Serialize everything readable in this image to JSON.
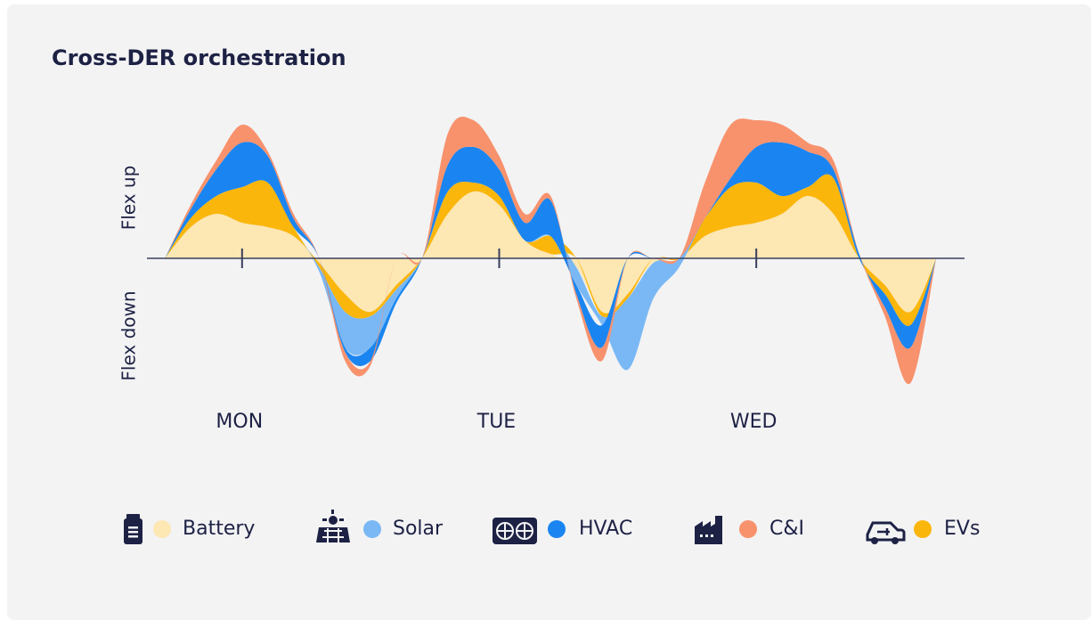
{
  "chart_data": {
    "type": "area",
    "title": "Cross-DER orchestration",
    "y_label_up": "Flex up",
    "y_label_down": "Flex down",
    "x": [
      -0.3,
      -0.2,
      -0.1,
      0,
      0.1,
      0.2,
      0.3,
      0.4,
      0.5,
      0.6,
      0.7,
      0.8,
      0.9,
      1.0,
      1.1,
      1.2,
      1.3,
      1.4,
      1.5,
      1.6,
      1.7,
      1.8,
      1.9,
      2.0,
      2.1,
      2.2,
      2.3,
      2.4,
      2.5,
      2.6,
      2.7
    ],
    "xlim": [
      -0.37,
      2.81
    ],
    "xticks": [
      {
        "value": 0,
        "label": "MON"
      },
      {
        "value": 1,
        "label": "TUE"
      },
      {
        "value": 2,
        "label": "WED"
      }
    ],
    "ylim": [
      -17,
      17
    ],
    "stacked": true,
    "series": [
      {
        "name": "Battery",
        "color": "#fde7b3",
        "values": [
          0,
          3.5,
          5,
          4,
          3.5,
          2.5,
          -0.5,
          -4,
          -6,
          -3,
          0,
          5,
          7.5,
          6,
          2,
          0.5,
          -1,
          -6,
          -4,
          -0.5,
          0,
          2.5,
          3.5,
          4,
          5,
          7,
          5,
          0,
          -3,
          -6,
          0
        ]
      },
      {
        "name": "Solar",
        "color": "#7ab8f5",
        "values": [
          0,
          0,
          0,
          0,
          0,
          0,
          -0.5,
          -4,
          -3.5,
          -1,
          0,
          0,
          0,
          0,
          0,
          0,
          -2,
          -1,
          -8,
          -4,
          -1,
          0,
          0,
          0,
          0,
          0,
          0,
          0,
          0,
          0,
          0
        ]
      },
      {
        "name": "HVAC",
        "color": "#1a85f0",
        "values": [
          0,
          1,
          3,
          5,
          3,
          1,
          0,
          -0.5,
          -1.5,
          -0.5,
          0,
          3,
          4,
          3,
          2,
          4,
          -1,
          -2.5,
          0,
          0,
          0,
          0,
          1,
          4,
          6,
          4,
          1,
          0.5,
          -1.5,
          -2.5,
          0
        ]
      },
      {
        "name": "C&I",
        "color": "#f7926d",
        "values": [
          0,
          0.5,
          1,
          2,
          0.5,
          0.5,
          0,
          -1,
          -0.5,
          0,
          0,
          3.5,
          3,
          1.5,
          1,
          0.5,
          -0.5,
          -1.5,
          0,
          0,
          0,
          4,
          6,
          3,
          2,
          1,
          1,
          0,
          -1,
          -4,
          0
        ]
      },
      {
        "name": "EVs",
        "color": "#fbb60c",
        "values": [
          0,
          1,
          2,
          4,
          5,
          1,
          -0.5,
          -2,
          -0.5,
          -0.5,
          0,
          2.5,
          1,
          1,
          0,
          2,
          0,
          -0.5,
          -0.5,
          0,
          0,
          2,
          4.5,
          4.5,
          2,
          1,
          4,
          0,
          -1,
          -1.5,
          0
        ]
      }
    ]
  }
}
